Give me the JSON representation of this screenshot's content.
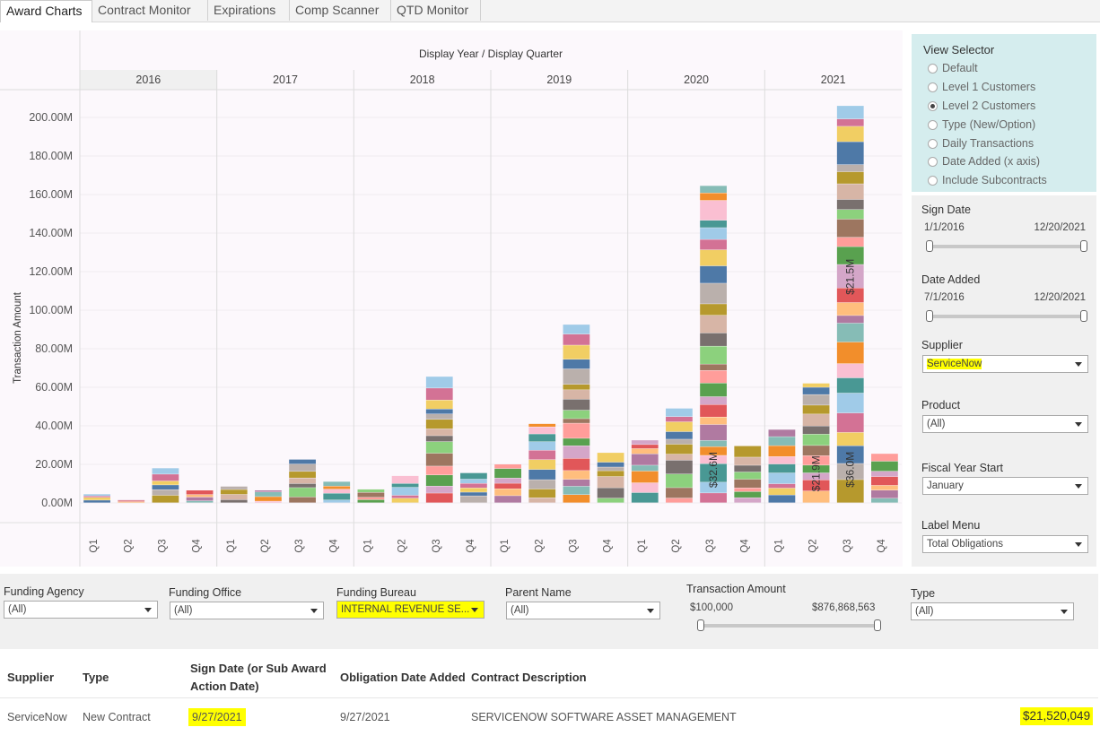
{
  "tabs": [
    "Award Charts",
    "Contract Monitor",
    "Expirations",
    "Comp Scanner",
    "QTD Monitor"
  ],
  "active_tab": "Award Charts",
  "chart_data": {
    "type": "bar",
    "stacked": true,
    "title": "Display Year / Display Quarter",
    "ylabel": "Transaction Amount",
    "ylim": [
      -5,
      210
    ],
    "yticks": [
      "0.00M",
      "20.00M",
      "40.00M",
      "60.00M",
      "80.00M",
      "100.00M",
      "120.00M",
      "140.00M",
      "160.00M",
      "180.00M",
      "200.00M"
    ],
    "ytick_values": [
      0,
      20,
      40,
      60,
      80,
      100,
      120,
      140,
      160,
      180,
      200
    ],
    "years": [
      "2016",
      "2017",
      "2018",
      "2019",
      "2020",
      "2021"
    ],
    "quarters": [
      "Q1",
      "Q2",
      "Q3",
      "Q4"
    ],
    "totals": [
      4.5,
      1.5,
      18,
      6.5,
      8.5,
      6.5,
      22.5,
      11,
      7,
      14,
      65.5,
      15.5,
      20,
      41,
      92.5,
      26,
      32.5,
      49,
      164.5,
      29.5,
      38,
      62,
      206,
      25.5
    ],
    "annotations": [
      {
        "year": "2020",
        "quarter": "Q3",
        "label": "$32.6M",
        "value": 32.6
      },
      {
        "year": "2021",
        "quarter": "Q2",
        "label": "$21.9M",
        "value": 21.9
      },
      {
        "year": "2021",
        "quarter": "Q3",
        "label": "$36.0M",
        "value": 36.0
      },
      {
        "year": "2021",
        "quarter": "Q3",
        "label": "$21.5M",
        "value": 21.5
      }
    ],
    "palette": [
      "#4e79a7",
      "#a0cbe8",
      "#f28e2b",
      "#ffbe7d",
      "#59a14f",
      "#8cd17d",
      "#b6992d",
      "#f1ce63",
      "#499894",
      "#86bcb6",
      "#e15759",
      "#ff9d9a",
      "#79706e",
      "#bab0ac",
      "#d37295",
      "#fabfd2",
      "#b07aa1",
      "#d4a6c8",
      "#9d7660",
      "#d7b5a6"
    ]
  },
  "view_selector": {
    "title": "View Selector",
    "options": [
      "Default",
      "Level 1 Customers",
      "Level 2 Customers",
      "Type (New/Option)",
      "Daily Transactions",
      "Date Added (x axis)",
      "Include Subcontracts"
    ],
    "selected": "Level 2 Customers"
  },
  "filters": {
    "sign_date": {
      "label": "Sign Date",
      "min": "1/1/2016",
      "max": "12/20/2021"
    },
    "date_added": {
      "label": "Date Added",
      "min": "7/1/2016",
      "max": "12/20/2021"
    },
    "supplier": {
      "label": "Supplier",
      "value": "ServiceNow"
    },
    "product": {
      "label": "Product",
      "value": "(All)"
    },
    "fiscal_year_start": {
      "label": "Fiscal Year Start",
      "value": "January"
    },
    "label_menu": {
      "label": "Label Menu",
      "value": "Total Obligations"
    },
    "funding_agency": {
      "label": "Funding Agency",
      "value": "(All)"
    },
    "funding_office": {
      "label": "Funding Office",
      "value": "(All)"
    },
    "funding_bureau": {
      "label": "Funding Bureau",
      "value": "INTERNAL REVENUE SE..."
    },
    "parent_name": {
      "label": "Parent Name",
      "value": "(All)"
    },
    "transaction_amount": {
      "label": "Transaction Amount",
      "min": "$100,000",
      "max": "$876,868,563"
    },
    "type": {
      "label": "Type",
      "value": "(All)"
    }
  },
  "table": {
    "headers": {
      "supplier": "Supplier",
      "type": "Type",
      "sign_date_1": "Sign Date (or Sub Award",
      "sign_date_2": "Action Date)",
      "obligation_date": "Obligation Date Added",
      "description": "Contract Description"
    },
    "row": {
      "supplier": "ServiceNow",
      "type": "New Contract",
      "sign_date": "9/27/2021",
      "obligation_date": "9/27/2021",
      "description": "SERVICENOW SOFTWARE ASSET MANAGEMENT",
      "amount": "$21,520,049"
    }
  }
}
